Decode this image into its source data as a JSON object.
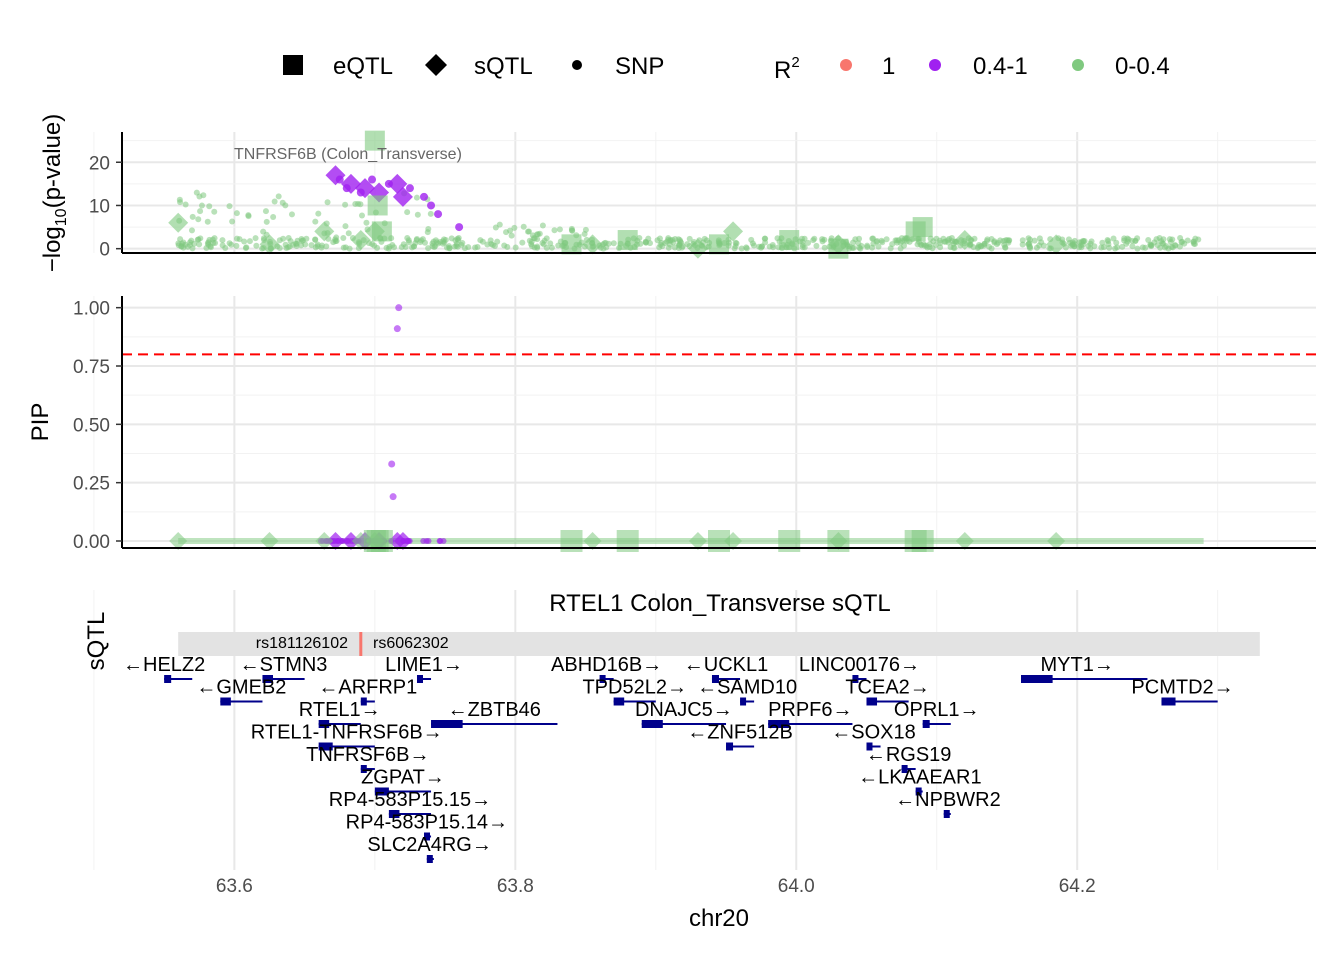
{
  "legend": {
    "shape_items": [
      {
        "label": "eQTL",
        "shape": "square"
      },
      {
        "label": "sQTL",
        "shape": "diamond"
      },
      {
        "label": "SNP",
        "shape": "circle"
      }
    ],
    "r2_title": "R",
    "r2_superscript": "2",
    "r2_items": [
      {
        "label": "1",
        "color": "#F8766D"
      },
      {
        "label": "0.4-1",
        "color": "#A020F0"
      },
      {
        "label": "0-0.4",
        "color": "#7FC97F"
      }
    ]
  },
  "chart_data": [
    {
      "type": "scatter",
      "panel": "association",
      "ylabel_prefix": "−log",
      "ylabel_sub": "10",
      "ylabel_suffix": "(p-value)",
      "ylim": [
        -1,
        27
      ],
      "yticks": [
        0,
        10,
        20
      ],
      "ytick_labels": [
        "0",
        "10",
        "20"
      ],
      "annotation": "TNFRSF6B (Colon_Transverse)",
      "series": [
        {
          "name": "sQTL",
          "color": "#A020F0",
          "points": [
            [
              63.672,
              17
            ],
            [
              63.683,
              15
            ],
            [
              63.693,
              14
            ],
            [
              63.703,
              13
            ],
            [
              63.716,
              15
            ],
            [
              63.72,
              12
            ]
          ]
        },
        {
          "name": "sQTL",
          "color": "#7FC97F",
          "points": [
            [
              63.56,
              6
            ],
            [
              63.625,
              1
            ],
            [
              63.664,
              4
            ],
            [
              63.69,
              2
            ],
            [
              63.7,
              4
            ],
            [
              63.855,
              1
            ],
            [
              63.93,
              0
            ],
            [
              63.955,
              4
            ],
            [
              64.03,
              1
            ],
            [
              64.12,
              2
            ],
            [
              64.185,
              1
            ]
          ]
        },
        {
          "name": "eQTL",
          "color": "#7FC97F",
          "points": [
            [
              63.7,
              25
            ],
            [
              63.702,
              10
            ],
            [
              63.705,
              4
            ],
            [
              63.84,
              1
            ],
            [
              63.88,
              2
            ],
            [
              63.945,
              1
            ],
            [
              63.995,
              2
            ],
            [
              64.03,
              0
            ],
            [
              64.085,
              4
            ],
            [
              64.09,
              5
            ]
          ]
        },
        {
          "name": "SNP",
          "color": "#A020F0",
          "points": [
            [
              63.675,
              16
            ],
            [
              63.68,
              14
            ],
            [
              63.69,
              13
            ],
            [
              63.698,
              16
            ],
            [
              63.71,
              15
            ],
            [
              63.725,
              14
            ],
            [
              63.735,
              12
            ],
            [
              63.74,
              10
            ],
            [
              63.745,
              8
            ],
            [
              63.76,
              5
            ]
          ]
        }
      ]
    },
    {
      "type": "scatter",
      "panel": "fine-mapping",
      "ylabel": "PIP",
      "ylim": [
        -0.03,
        1.05
      ],
      "yticks": [
        0,
        0.25,
        0.5,
        0.75,
        1
      ],
      "ytick_labels": [
        "0.00",
        "0.25",
        "0.50",
        "0.75",
        "1.00"
      ],
      "threshold": 0.8,
      "series": [
        {
          "name": "SNP",
          "color": "#A020F0",
          "points": [
            [
              63.717,
              1.0
            ],
            [
              63.716,
              0.91
            ],
            [
              63.712,
              0.33
            ],
            [
              63.713,
              0.19
            ]
          ]
        }
      ]
    },
    {
      "type": "genes",
      "panel": "genes",
      "title": "RTEL1 Colon_Transverse sQTL",
      "track_label": "sQTL",
      "xlabel": "chr20",
      "xlim": [
        63.52,
        64.37
      ],
      "xticks": [
        63.6,
        63.8,
        64.0,
        64.2
      ],
      "xtick_labels": [
        "63.6",
        "63.8",
        "64.0",
        "64.2"
      ],
      "region": [
        63.56,
        64.33
      ],
      "snps": [
        {
          "label": "rs181126102"
        },
        {
          "label": "rs6062302"
        }
      ],
      "lead_snp_pos": 63.69,
      "genes": [
        {
          "label": "←HELZ2",
          "start": 63.55,
          "end": 63.57,
          "row": 0,
          "label_pos": 63.55
        },
        {
          "label": "←STMN3",
          "start": 63.62,
          "end": 63.65,
          "row": 0,
          "label_pos": 63.635
        },
        {
          "label": "LIME1→",
          "start": 63.73,
          "end": 63.74,
          "row": 0,
          "label_pos": 63.735
        },
        {
          "label": "ABHD16B→",
          "start": 63.86,
          "end": 63.87,
          "row": 0,
          "label_pos": 63.865
        },
        {
          "label": "←UCKL1",
          "start": 63.94,
          "end": 63.96,
          "row": 0,
          "label_pos": 63.95
        },
        {
          "label": "LINC00176→",
          "start": 64.04,
          "end": 64.05,
          "row": 0,
          "label_pos": 64.045
        },
        {
          "label": "MYT1→",
          "start": 64.16,
          "end": 64.25,
          "row": 0,
          "label_pos": 64.2
        },
        {
          "label": "←GMEB2",
          "start": 63.59,
          "end": 63.62,
          "row": 1,
          "label_pos": 63.605
        },
        {
          "label": "←ARFRP1",
          "start": 63.69,
          "end": 63.7,
          "row": 1,
          "label_pos": 63.695
        },
        {
          "label": "TPD52L2→",
          "start": 63.87,
          "end": 63.9,
          "row": 1,
          "label_pos": 63.885
        },
        {
          "label": "←SAMD10",
          "start": 63.96,
          "end": 63.97,
          "row": 1,
          "label_pos": 63.965
        },
        {
          "label": "TCEA2→",
          "start": 64.05,
          "end": 64.08,
          "row": 1,
          "label_pos": 64.065
        },
        {
          "label": "PCMTD2→",
          "start": 64.26,
          "end": 64.3,
          "row": 1,
          "label_pos": 64.275
        },
        {
          "label": "RTEL1→",
          "start": 63.66,
          "end": 63.69,
          "row": 2,
          "label_pos": 63.675
        },
        {
          "label": "←ZBTB46",
          "start": 63.74,
          "end": 63.83,
          "row": 2,
          "label_pos": 63.785
        },
        {
          "label": "DNAJC5→",
          "start": 63.89,
          "end": 63.95,
          "row": 2,
          "label_pos": 63.92
        },
        {
          "label": "PRPF6→",
          "start": 63.98,
          "end": 64.04,
          "row": 2,
          "label_pos": 64.01
        },
        {
          "label": "OPRL1→",
          "start": 64.09,
          "end": 64.11,
          "row": 2,
          "label_pos": 64.1
        },
        {
          "label": "RTEL1-TNFRSF6B→",
          "start": 63.66,
          "end": 63.7,
          "row": 3,
          "label_pos": 63.68
        },
        {
          "label": "←ZNF512B",
          "start": 63.95,
          "end": 63.97,
          "row": 3,
          "label_pos": 63.96
        },
        {
          "label": "←SOX18",
          "start": 64.05,
          "end": 64.06,
          "row": 3,
          "label_pos": 64.055
        },
        {
          "label": "TNFRSF6B→",
          "start": 63.69,
          "end": 63.7,
          "row": 4,
          "label_pos": 63.695
        },
        {
          "label": "←RGS19",
          "start": 64.075,
          "end": 64.085,
          "row": 4,
          "label_pos": 64.08
        },
        {
          "label": "ZGPAT→",
          "start": 63.7,
          "end": 63.74,
          "row": 5,
          "label_pos": 63.72
        },
        {
          "label": "←LKAAEAR1",
          "start": 64.085,
          "end": 64.09,
          "row": 5,
          "label_pos": 64.088
        },
        {
          "label": "RP4-583P15.15→",
          "start": 63.71,
          "end": 63.74,
          "row": 6,
          "label_pos": 63.725
        },
        {
          "label": "←NPBWR2",
          "start": 64.105,
          "end": 64.11,
          "row": 6,
          "label_pos": 64.108
        },
        {
          "label": "RP4-583P15.14→",
          "start": 63.735,
          "end": 63.74,
          "row": 7,
          "label_pos": 63.737
        },
        {
          "label": "SLC2A4RG→",
          "start": 63.737,
          "end": 63.742,
          "row": 8,
          "label_pos": 63.739
        }
      ]
    }
  ]
}
